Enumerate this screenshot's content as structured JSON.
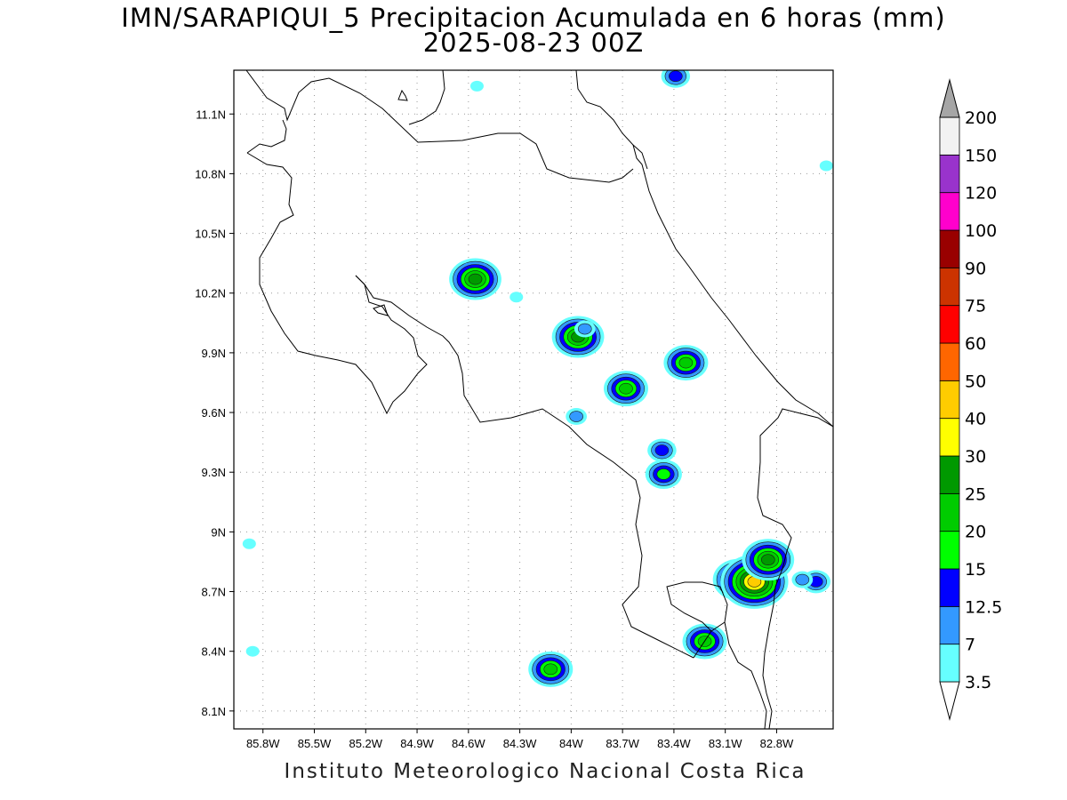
{
  "title": {
    "line1": "IMN/SARAPIQUI_5 Precipitacion Acumulada en 6 horas (mm)",
    "line2": "2025-08-23 00Z"
  },
  "footer": "Instituto Meteorologico Nacional Costa Rica",
  "map": {
    "lon_range": [
      -85.97,
      -82.47
    ],
    "lat_range": [
      8.01,
      11.32
    ],
    "lat_ticks": [
      {
        "value": 8.1,
        "label": "8.1N"
      },
      {
        "value": 8.4,
        "label": "8.4N"
      },
      {
        "value": 8.7,
        "label": "8.7N"
      },
      {
        "value": 9.0,
        "label": "9N"
      },
      {
        "value": 9.3,
        "label": "9.3N"
      },
      {
        "value": 9.6,
        "label": "9.6N"
      },
      {
        "value": 9.9,
        "label": "9.9N"
      },
      {
        "value": 10.2,
        "label": "10.2N"
      },
      {
        "value": 10.5,
        "label": "10.5N"
      },
      {
        "value": 10.8,
        "label": "10.8N"
      },
      {
        "value": 11.1,
        "label": "11.1N"
      }
    ],
    "lon_ticks": [
      {
        "value": -85.8,
        "label": "85.8W"
      },
      {
        "value": -85.5,
        "label": "85.5W"
      },
      {
        "value": -85.2,
        "label": "85.2W"
      },
      {
        "value": -84.9,
        "label": "84.9W"
      },
      {
        "value": -84.6,
        "label": "84.6W"
      },
      {
        "value": -84.3,
        "label": "84.3W"
      },
      {
        "value": -84.0,
        "label": "84W"
      },
      {
        "value": -83.7,
        "label": "83.7W"
      },
      {
        "value": -83.4,
        "label": "83.4W"
      },
      {
        "value": -83.1,
        "label": "83.1W"
      },
      {
        "value": -82.8,
        "label": "82.8W"
      }
    ],
    "precip_cells": [
      {
        "lon": -84.56,
        "lat": 10.27,
        "mm": 25
      },
      {
        "lon": -84.32,
        "lat": 10.18,
        "mm": 3.5
      },
      {
        "lon": -83.96,
        "lat": 9.98,
        "mm": 25
      },
      {
        "lon": -83.92,
        "lat": 10.02,
        "mm": 7
      },
      {
        "lon": -83.68,
        "lat": 9.72,
        "mm": 20
      },
      {
        "lon": -83.33,
        "lat": 9.85,
        "mm": 20
      },
      {
        "lon": -83.97,
        "lat": 9.58,
        "mm": 7
      },
      {
        "lon": -83.47,
        "lat": 9.41,
        "mm": 12.5
      },
      {
        "lon": -83.46,
        "lat": 9.29,
        "mm": 15
      },
      {
        "lon": -83.39,
        "lat": 11.29,
        "mm": 12.5
      },
      {
        "lon": -84.55,
        "lat": 11.24,
        "mm": 3.5
      },
      {
        "lon": -84.12,
        "lat": 8.31,
        "mm": 20
      },
      {
        "lon": -83.22,
        "lat": 8.45,
        "mm": 20
      },
      {
        "lon": -83.02,
        "lat": 8.76,
        "mm": 25
      },
      {
        "lon": -82.93,
        "lat": 8.75,
        "mm": 40
      },
      {
        "lon": -82.85,
        "lat": 8.86,
        "mm": 25
      },
      {
        "lon": -82.57,
        "lat": 8.75,
        "mm": 12.5
      },
      {
        "lon": -82.65,
        "lat": 8.76,
        "mm": 7
      },
      {
        "lon": -82.51,
        "lat": 10.84,
        "mm": 3.5
      },
      {
        "lon": -85.88,
        "lat": 8.94,
        "mm": 3.5
      },
      {
        "lon": -85.86,
        "lat": 8.4,
        "mm": 3.5
      }
    ]
  },
  "colorbar": {
    "levels": [
      "3.5",
      "7",
      "12.5",
      "15",
      "20",
      "25",
      "30",
      "40",
      "50",
      "60",
      "75",
      "90",
      "100",
      "120",
      "150",
      "200"
    ],
    "colors": [
      "#66ffff",
      "#3399ff",
      "#0000ff",
      "#00ff00",
      "#00cc00",
      "#009900",
      "#ffff00",
      "#ffcc00",
      "#ff6600",
      "#ff0000",
      "#cc3300",
      "#990000",
      "#ff00cc",
      "#9933cc",
      "#f2f2f2",
      "#a6a6a6"
    ]
  }
}
